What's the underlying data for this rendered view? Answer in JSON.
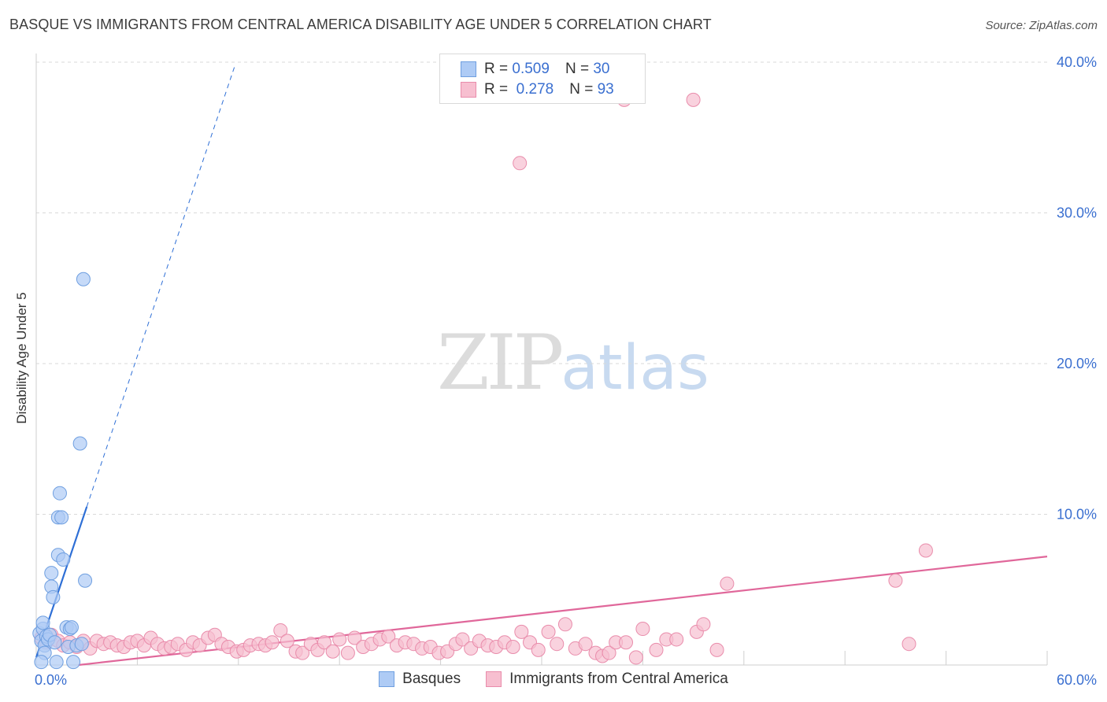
{
  "title": "BASQUE VS IMMIGRANTS FROM CENTRAL AMERICA DISABILITY AGE UNDER 5 CORRELATION CHART",
  "source": "Source: ZipAtlas.com",
  "watermark": {
    "zip": "ZIP",
    "atlas": "atlas"
  },
  "legend": {
    "r_label": "R =",
    "n_label": "N =",
    "rows": [
      {
        "r": "0.509",
        "n": "30"
      },
      {
        "r": "0.278",
        "n": "93"
      }
    ]
  },
  "bottom_legend": [
    "Basques",
    "Immigrants from Central America"
  ],
  "colors": {
    "blue_fill": "#aecbf5",
    "blue_stroke": "#6f9fe0",
    "blue_line": "#2e6fd6",
    "pink_fill": "#f7bfd0",
    "pink_stroke": "#e98cab",
    "pink_line": "#e0679a",
    "axis_text": "#3a6fd0",
    "grid": "#d9d9d9"
  },
  "chart_data": {
    "type": "scatter",
    "title": "BASQUE VS IMMIGRANTS FROM CENTRAL AMERICA DISABILITY AGE UNDER 5 CORRELATION CHART",
    "xlabel": "",
    "ylabel": "Disability Age Under 5",
    "xlim": [
      0,
      60
    ],
    "ylim": [
      0,
      40
    ],
    "x_tick_labels": [
      "0.0%",
      "60.0%"
    ],
    "y_ticks": [
      10,
      20,
      30,
      40
    ],
    "y_tick_labels": [
      "10.0%",
      "20.0%",
      "30.0%",
      "40.0%"
    ],
    "grid": true,
    "legend_position": "top-center",
    "series": [
      {
        "name": "Basques",
        "color": "#aecbf5",
        "points": [
          [
            0.2,
            2.1
          ],
          [
            0.3,
            1.6
          ],
          [
            0.4,
            2.4
          ],
          [
            0.4,
            2.8
          ],
          [
            0.5,
            1.3
          ],
          [
            0.5,
            0.8
          ],
          [
            0.6,
            1.9
          ],
          [
            0.7,
            1.7
          ],
          [
            0.8,
            2.0
          ],
          [
            0.9,
            5.2
          ],
          [
            0.9,
            6.1
          ],
          [
            1.0,
            4.5
          ],
          [
            1.1,
            1.5
          ],
          [
            1.2,
            0.2
          ],
          [
            1.3,
            9.8
          ],
          [
            1.3,
            7.3
          ],
          [
            1.4,
            11.4
          ],
          [
            1.5,
            9.8
          ],
          [
            1.6,
            7.0
          ],
          [
            1.8,
            2.5
          ],
          [
            1.9,
            1.2
          ],
          [
            2.0,
            2.4
          ],
          [
            2.1,
            2.5
          ],
          [
            2.2,
            0.2
          ],
          [
            2.4,
            1.3
          ],
          [
            2.6,
            14.7
          ],
          [
            2.7,
            1.4
          ],
          [
            2.8,
            25.6
          ],
          [
            2.9,
            5.6
          ],
          [
            0.3,
            0.2
          ]
        ]
      },
      {
        "name": "Immigrants from Central America",
        "color": "#f7bfd0",
        "points": [
          [
            0.3,
            1.8
          ],
          [
            0.6,
            1.5
          ],
          [
            0.9,
            2.0
          ],
          [
            1.3,
            1.6
          ],
          [
            1.6,
            1.3
          ],
          [
            2.0,
            1.5
          ],
          [
            2.4,
            1.2
          ],
          [
            2.8,
            1.6
          ],
          [
            3.2,
            1.1
          ],
          [
            3.6,
            1.6
          ],
          [
            4.0,
            1.4
          ],
          [
            4.4,
            1.5
          ],
          [
            4.8,
            1.3
          ],
          [
            5.2,
            1.2
          ],
          [
            5.6,
            1.5
          ],
          [
            6.0,
            1.6
          ],
          [
            6.4,
            1.3
          ],
          [
            6.8,
            1.8
          ],
          [
            7.2,
            1.4
          ],
          [
            7.6,
            1.1
          ],
          [
            8.0,
            1.2
          ],
          [
            8.4,
            1.4
          ],
          [
            8.9,
            1.0
          ],
          [
            9.3,
            1.5
          ],
          [
            9.7,
            1.3
          ],
          [
            10.2,
            1.8
          ],
          [
            10.6,
            2.0
          ],
          [
            11.0,
            1.4
          ],
          [
            11.4,
            1.2
          ],
          [
            11.9,
            0.9
          ],
          [
            12.3,
            1.0
          ],
          [
            12.7,
            1.3
          ],
          [
            13.2,
            1.4
          ],
          [
            13.6,
            1.3
          ],
          [
            14.0,
            1.5
          ],
          [
            14.5,
            2.3
          ],
          [
            14.9,
            1.6
          ],
          [
            15.4,
            0.9
          ],
          [
            15.8,
            0.8
          ],
          [
            16.3,
            1.4
          ],
          [
            16.7,
            1.0
          ],
          [
            17.1,
            1.5
          ],
          [
            17.6,
            0.9
          ],
          [
            18.0,
            1.7
          ],
          [
            18.5,
            0.8
          ],
          [
            18.9,
            1.8
          ],
          [
            19.4,
            1.2
          ],
          [
            19.9,
            1.4
          ],
          [
            20.4,
            1.7
          ],
          [
            20.9,
            1.9
          ],
          [
            21.4,
            1.3
          ],
          [
            21.9,
            1.5
          ],
          [
            22.4,
            1.4
          ],
          [
            22.9,
            1.1
          ],
          [
            23.4,
            1.2
          ],
          [
            23.9,
            0.8
          ],
          [
            24.4,
            0.9
          ],
          [
            24.9,
            1.4
          ],
          [
            25.3,
            1.7
          ],
          [
            25.8,
            1.1
          ],
          [
            26.3,
            1.6
          ],
          [
            26.8,
            1.3
          ],
          [
            27.3,
            1.2
          ],
          [
            27.8,
            1.5
          ],
          [
            28.3,
            1.2
          ],
          [
            28.8,
            2.2
          ],
          [
            29.3,
            1.5
          ],
          [
            29.8,
            1.0
          ],
          [
            30.4,
            2.2
          ],
          [
            30.9,
            1.4
          ],
          [
            31.4,
            2.7
          ],
          [
            32.0,
            1.1
          ],
          [
            32.6,
            1.4
          ],
          [
            33.2,
            0.8
          ],
          [
            33.6,
            0.6
          ],
          [
            34.0,
            0.8
          ],
          [
            34.4,
            1.5
          ],
          [
            35.0,
            1.5
          ],
          [
            35.6,
            0.5
          ],
          [
            36.0,
            2.4
          ],
          [
            36.8,
            1.0
          ],
          [
            37.4,
            1.7
          ],
          [
            38.0,
            1.7
          ],
          [
            39.2,
            2.2
          ],
          [
            39.6,
            2.7
          ],
          [
            40.4,
            1.0
          ],
          [
            41.0,
            5.4
          ],
          [
            51.0,
            5.6
          ],
          [
            51.8,
            1.4
          ],
          [
            52.8,
            7.6
          ],
          [
            34.9,
            37.5
          ],
          [
            39.0,
            37.5
          ],
          [
            28.7,
            33.3
          ]
        ]
      }
    ],
    "trend_lines": [
      {
        "series": "Basques",
        "solid": [
          [
            0,
            0.5
          ],
          [
            3.0,
            10.5
          ]
        ],
        "dashed": [
          [
            3.0,
            10.5
          ],
          [
            11.8,
            39.8
          ]
        ]
      },
      {
        "series": "Immigrants from Central America",
        "solid": [
          [
            2.5,
            0.0
          ],
          [
            60,
            7.2
          ]
        ]
      }
    ]
  }
}
